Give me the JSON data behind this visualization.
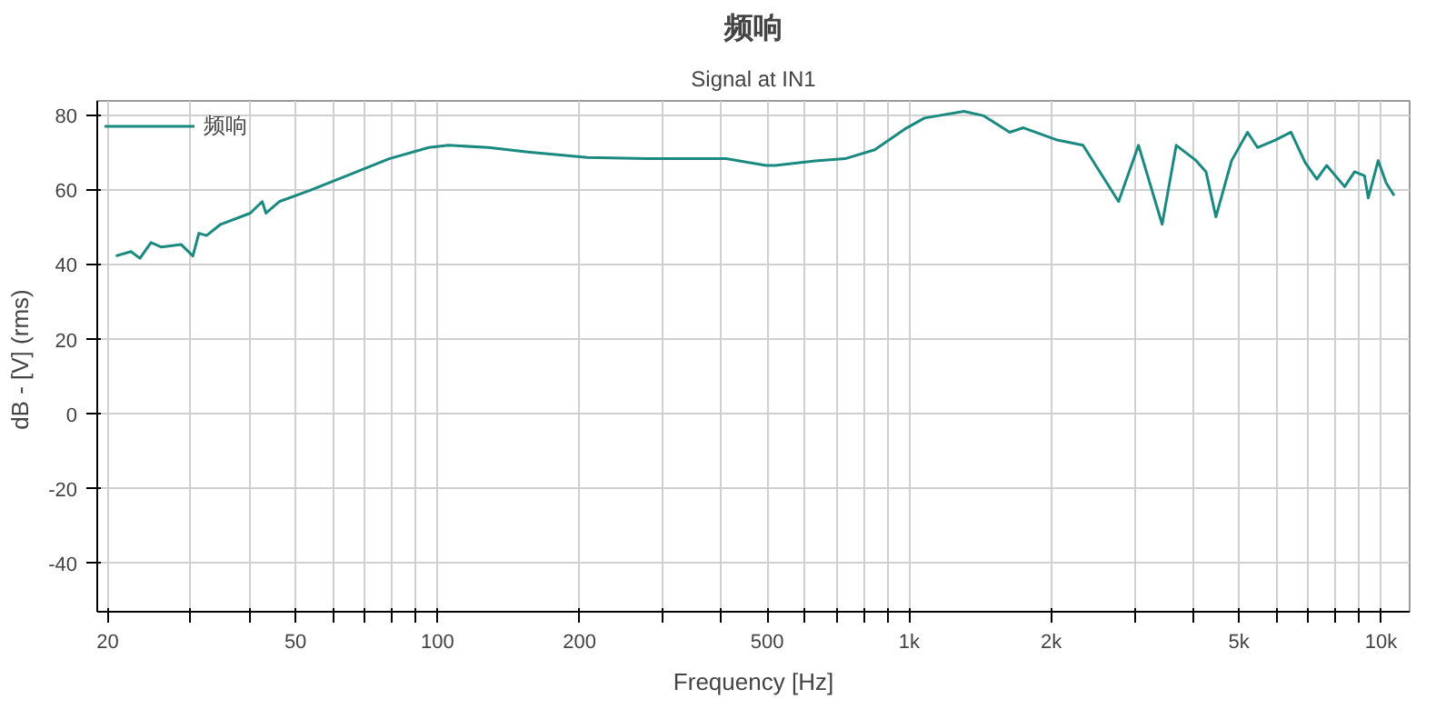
{
  "chart_data": {
    "type": "line",
    "title": "频响",
    "subtitle": "Signal at IN1",
    "xlabel": "Frequency [Hz]",
    "ylabel": "dB - [V]  (rms)",
    "log": "x",
    "grid": true,
    "legend": "top left",
    "line_style": "solid",
    "marker": "none",
    "xlim": [
      19,
      11500
    ],
    "ylim": [
      -53,
      84
    ],
    "xticks": [
      20,
      {
        "value": 30,
        "label": null
      },
      {
        "value": 40,
        "label": null
      },
      50,
      {
        "value": 60,
        "label": null
      },
      {
        "value": 70,
        "label": null
      },
      {
        "value": 80,
        "label": null
      },
      {
        "value": 90,
        "label": null
      },
      100,
      200,
      {
        "value": 300,
        "label": null
      },
      {
        "value": 400,
        "label": null
      },
      500,
      {
        "value": 600,
        "label": null
      },
      {
        "value": 700,
        "label": null
      },
      {
        "value": 800,
        "label": null
      },
      {
        "value": 900,
        "label": null
      },
      {
        "value": 1000,
        "label": "1k"
      },
      {
        "value": 2000,
        "label": "2k"
      },
      {
        "value": 3000,
        "label": null
      },
      {
        "value": 4000,
        "label": null
      },
      {
        "value": 5000,
        "label": "5k"
      },
      {
        "value": 6000,
        "label": null
      },
      {
        "value": 7000,
        "label": null
      },
      {
        "value": 8000,
        "label": null
      },
      {
        "value": 9000,
        "label": null
      },
      {
        "value": 10000,
        "label": "10k"
      }
    ],
    "yticks": [
      -40,
      -20,
      0,
      20,
      40,
      60,
      80
    ],
    "x": [
      20.8,
      22.4,
      23.4,
      24.7,
      26.0,
      28.6,
      30.3,
      31.2,
      32.4,
      34.7,
      40.1,
      42.5,
      43.3,
      46.2,
      53.7,
      65.1,
      79.0,
      95.9,
      105.6,
      128.2,
      155.6,
      207.9,
      278,
      409,
      497,
      520,
      632,
      731,
      845,
      977,
      1077,
      1306,
      1439,
      1633,
      1746,
      2059,
      2335,
      2778,
      3062,
      3436,
      3681,
      4055,
      4256,
      4467,
      4823,
      5213,
      5472,
      5970,
      6444,
      6902,
      7311,
      7672,
      8375,
      8790,
      9226,
      9398,
      9863,
      10255,
      10666
    ],
    "series": [
      {
        "name": "频响",
        "color": "#1a8a80",
        "values": [
          42.4,
          43.6,
          41.8,
          46,
          44.8,
          45.5,
          42.4,
          48.5,
          47.9,
          50.9,
          53.9,
          57,
          53.9,
          57,
          60,
          64.2,
          68.5,
          71.5,
          72.1,
          71.5,
          70.3,
          68.8,
          68.5,
          68.5,
          66.7,
          66.7,
          67.9,
          68.5,
          70.9,
          76.4,
          79.4,
          81.2,
          80,
          75.6,
          76.8,
          73.5,
          72.1,
          57,
          72.1,
          50.9,
          72.1,
          68,
          65,
          52.9,
          68,
          75.6,
          71.5,
          73.5,
          75.6,
          67.5,
          63,
          66.7,
          61,
          65,
          63.9,
          58,
          68,
          62,
          58.6
        ]
      }
    ]
  }
}
